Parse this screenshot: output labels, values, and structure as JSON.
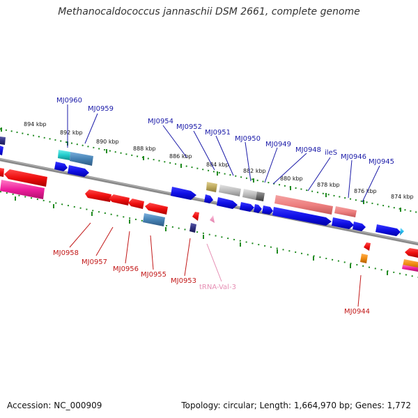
{
  "title": "Methanocaldococcus jannaschii DSM 2661, complete genome",
  "footer": {
    "accession": "Accession: NC_000909",
    "summary": "Topology: circular; Length: 1,664,970 bp; Genes: 1,772"
  },
  "colors": {
    "backbone": "#808080",
    "ruler_ticks": "#1f8a1f",
    "forward_label": "#1a1aa8",
    "reverse_label": "#c21818",
    "trna_label": "#e68fb4"
  },
  "ruler": [
    {
      "label": "894 kbp"
    },
    {
      "label": "892 kbp"
    },
    {
      "label": "890 kbp"
    },
    {
      "label": "888 kbp"
    },
    {
      "label": "886 kbp"
    },
    {
      "label": "884 kbp"
    },
    {
      "label": "882 kbp"
    },
    {
      "label": "880 kbp"
    },
    {
      "label": "878 kbp"
    },
    {
      "label": "876 kbp"
    },
    {
      "label": "874 kbp"
    }
  ],
  "gene_labels": {
    "forward": [
      "MJ0960",
      "MJ0959",
      "MJ0954",
      "MJ0952",
      "MJ0951",
      "MJ0950",
      "MJ0949",
      "MJ0948",
      "ileS",
      "MJ0946",
      "MJ0945"
    ],
    "reverse": [
      "MJ0958",
      "MJ0957",
      "MJ0956",
      "MJ0955",
      "MJ0953",
      "MJ0944"
    ],
    "trna": [
      "tRNA-Val-3"
    ]
  }
}
